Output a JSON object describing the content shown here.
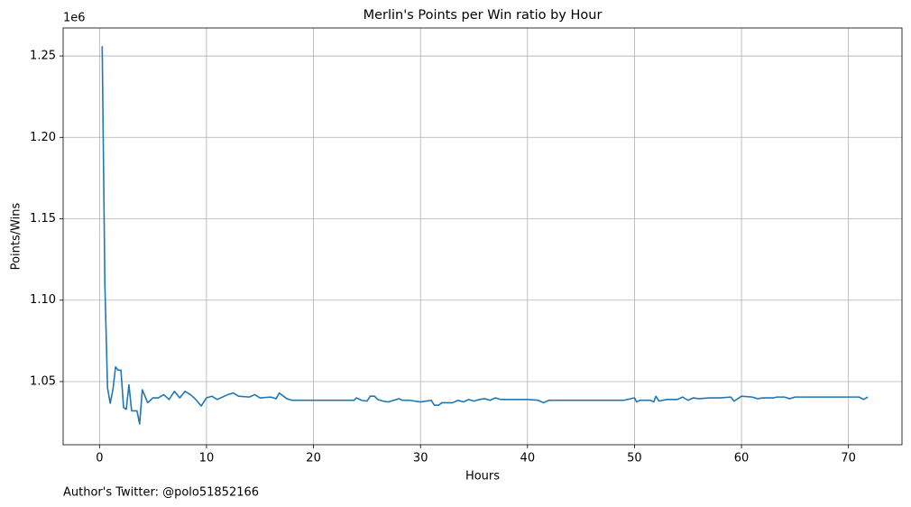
{
  "chart_data": {
    "type": "line",
    "title": "Merlin's Points per Win ratio by Hour",
    "x_label": "Hours",
    "y_label": "Points/Wins",
    "y_offset_label": "1e6",
    "footnote": "Author's Twitter: @polo51852166",
    "x": [
      0.25,
      0.5,
      0.75,
      1.0,
      1.25,
      1.5,
      1.75,
      2.0,
      2.25,
      2.5,
      2.75,
      3.0,
      3.5,
      3.75,
      4.0,
      4.5,
      5.0,
      5.5,
      6.0,
      6.5,
      7.0,
      7.5,
      8.0,
      8.5,
      9.0,
      9.5,
      10.0,
      10.5,
      11.0,
      12.0,
      12.5,
      13.0,
      14.0,
      14.5,
      15.0,
      16.0,
      16.5,
      16.8,
      17.5,
      18.0,
      23.8,
      24.0,
      24.5,
      25.0,
      25.3,
      25.7,
      26.0,
      26.5,
      27.0,
      27.5,
      28.0,
      28.3,
      29.0,
      30.0,
      31.0,
      31.3,
      31.7,
      32.0,
      33.0,
      33.5,
      34.0,
      34.5,
      35.0,
      35.5,
      36.0,
      36.5,
      37.0,
      37.5,
      38.0,
      40.0,
      41.0,
      41.5,
      42.0,
      49.0,
      50.0,
      50.2,
      50.5,
      51.5,
      51.8,
      52.0,
      52.3,
      53.0,
      54.0,
      54.5,
      55.0,
      55.5,
      56.0,
      57.0,
      58.0,
      59.0,
      59.3,
      60.0,
      61.0,
      61.5,
      62.0,
      63.0,
      63.3,
      64.0,
      64.5,
      65.0,
      71.0,
      71.4,
      71.8
    ],
    "series": [
      {
        "name": "Points/Wins",
        "color": "#1f77b4",
        "values": [
          1256000,
          1110000,
          1046000,
          1036700,
          1045000,
          1059000,
          1057000,
          1057000,
          1034000,
          1033000,
          1048000,
          1032000,
          1032000,
          1024000,
          1045000,
          1037000,
          1040000,
          1040000,
          1042000,
          1039000,
          1044000,
          1040000,
          1044000,
          1042000,
          1039000,
          1035000,
          1040000,
          1041000,
          1039000,
          1042000,
          1043000,
          1041000,
          1040500,
          1042000,
          1040000,
          1040500,
          1039500,
          1043000,
          1039500,
          1038500,
          1038500,
          1040000,
          1038500,
          1038000,
          1041000,
          1041000,
          1039000,
          1038000,
          1037500,
          1038500,
          1039500,
          1038500,
          1038500,
          1037500,
          1038500,
          1035500,
          1035500,
          1037000,
          1037000,
          1038500,
          1037500,
          1039000,
          1038000,
          1039000,
          1039500,
          1038500,
          1040000,
          1039000,
          1039000,
          1039000,
          1038500,
          1037000,
          1038500,
          1038500,
          1040000,
          1037500,
          1038500,
          1038500,
          1037500,
          1041000,
          1038000,
          1039000,
          1039000,
          1040500,
          1038500,
          1040000,
          1039500,
          1040000,
          1040000,
          1040500,
          1038000,
          1041000,
          1040500,
          1039500,
          1040000,
          1040000,
          1040500,
          1040500,
          1039500,
          1040500,
          1040500,
          1039000,
          1040500
        ]
      }
    ],
    "xlim": [
      -3.4,
      75.0
    ],
    "ylim": [
      1011200,
      1267200
    ],
    "xticks": [
      0,
      10,
      20,
      30,
      40,
      50,
      60,
      70
    ],
    "yticks": [
      {
        "value": 1050000,
        "label": "1.05"
      },
      {
        "value": 1100000,
        "label": "1.10"
      },
      {
        "value": 1150000,
        "label": "1.15"
      },
      {
        "value": 1200000,
        "label": "1.20"
      },
      {
        "value": 1250000,
        "label": "1.25"
      }
    ],
    "grid": true
  }
}
